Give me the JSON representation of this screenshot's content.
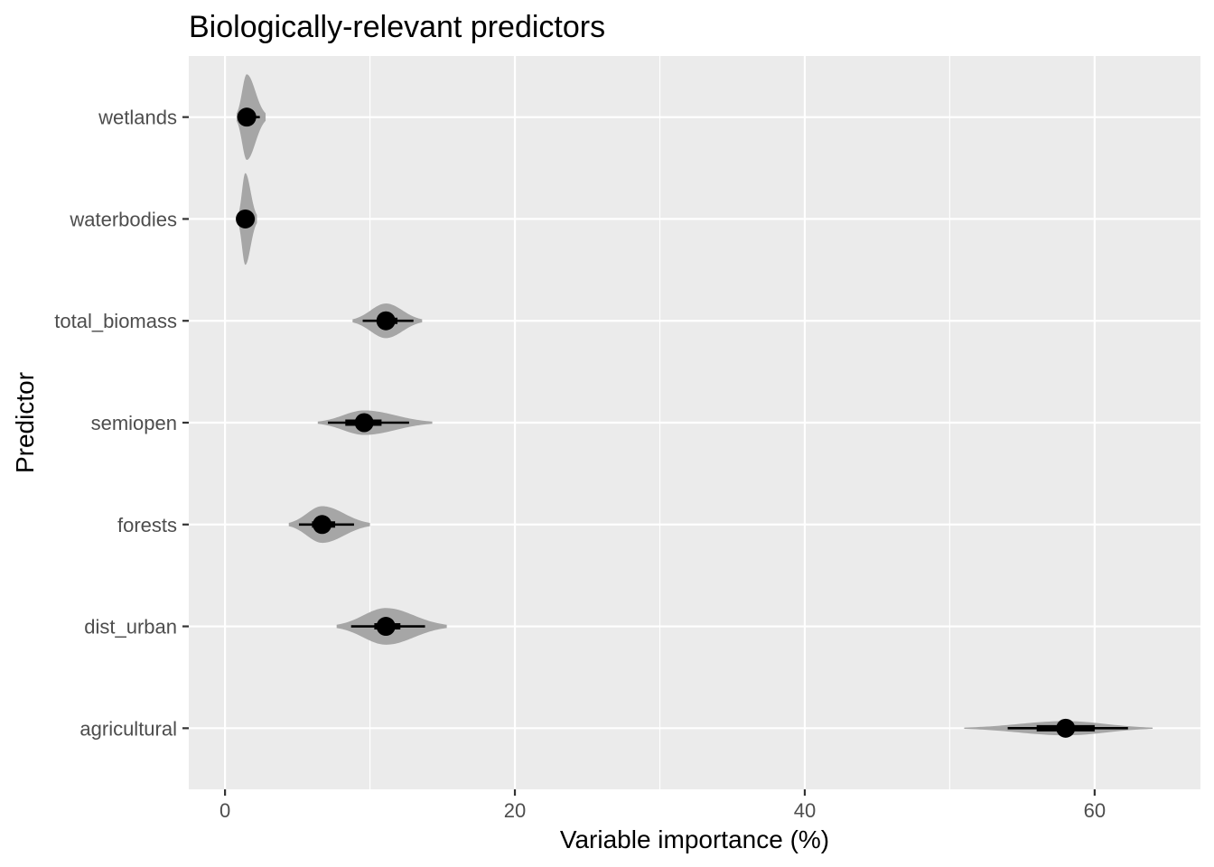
{
  "chart_data": {
    "type": "violin",
    "orientation": "horizontal",
    "title": "Biologically-relevant predictors",
    "xlabel": "Variable importance (%)",
    "ylabel": "Predictor",
    "xlim": [
      -2.5,
      67.3
    ],
    "x_ticks": [
      0,
      20,
      40,
      60
    ],
    "x_tick_labels": [
      "0",
      "20",
      "40",
      "60"
    ],
    "grid": true,
    "panel_background": "#ebebeb",
    "grid_color": "#ffffff",
    "violin_fill": "#a6a6a6",
    "point_color": "#000000",
    "categories": [
      "agricultural",
      "dist_urban",
      "forests",
      "semiopen",
      "total_biomass",
      "waterbodies",
      "wetlands"
    ],
    "series": [
      {
        "category": "agricultural",
        "median": 58.0,
        "min": 51.0,
        "max": 64.0,
        "q05": 54.0,
        "q95": 62.3,
        "q25": 56.0,
        "q75": 60.0,
        "max_width": 0.07
      },
      {
        "category": "dist_urban",
        "median": 11.1,
        "min": 7.7,
        "max": 15.3,
        "q05": 8.7,
        "q95": 13.8,
        "q25": 10.3,
        "q75": 12.1,
        "max_width": 0.18
      },
      {
        "category": "forests",
        "median": 6.7,
        "min": 4.4,
        "max": 10.0,
        "q05": 5.1,
        "q95": 8.9,
        "q25": 6.0,
        "q75": 7.6,
        "max_width": 0.18
      },
      {
        "category": "semiopen",
        "median": 9.6,
        "min": 6.4,
        "max": 14.3,
        "q05": 7.1,
        "q95": 12.7,
        "q25": 8.3,
        "q75": 10.8,
        "max_width": 0.12
      },
      {
        "category": "total_biomass",
        "median": 11.1,
        "min": 8.8,
        "max": 13.6,
        "q05": 9.5,
        "q95": 13.0,
        "q25": 10.5,
        "q75": 11.9,
        "max_width": 0.17
      },
      {
        "category": "waterbodies",
        "median": 1.4,
        "min": 0.9,
        "max": 2.2,
        "q05": 1.0,
        "q95": 2.0,
        "q25": 1.2,
        "q75": 1.7,
        "max_width": 0.45
      },
      {
        "category": "wetlands",
        "median": 1.5,
        "min": 0.8,
        "max": 2.8,
        "q05": 1.0,
        "q95": 2.4,
        "q25": 1.3,
        "q75": 2.0,
        "max_width": 0.42
      }
    ]
  }
}
